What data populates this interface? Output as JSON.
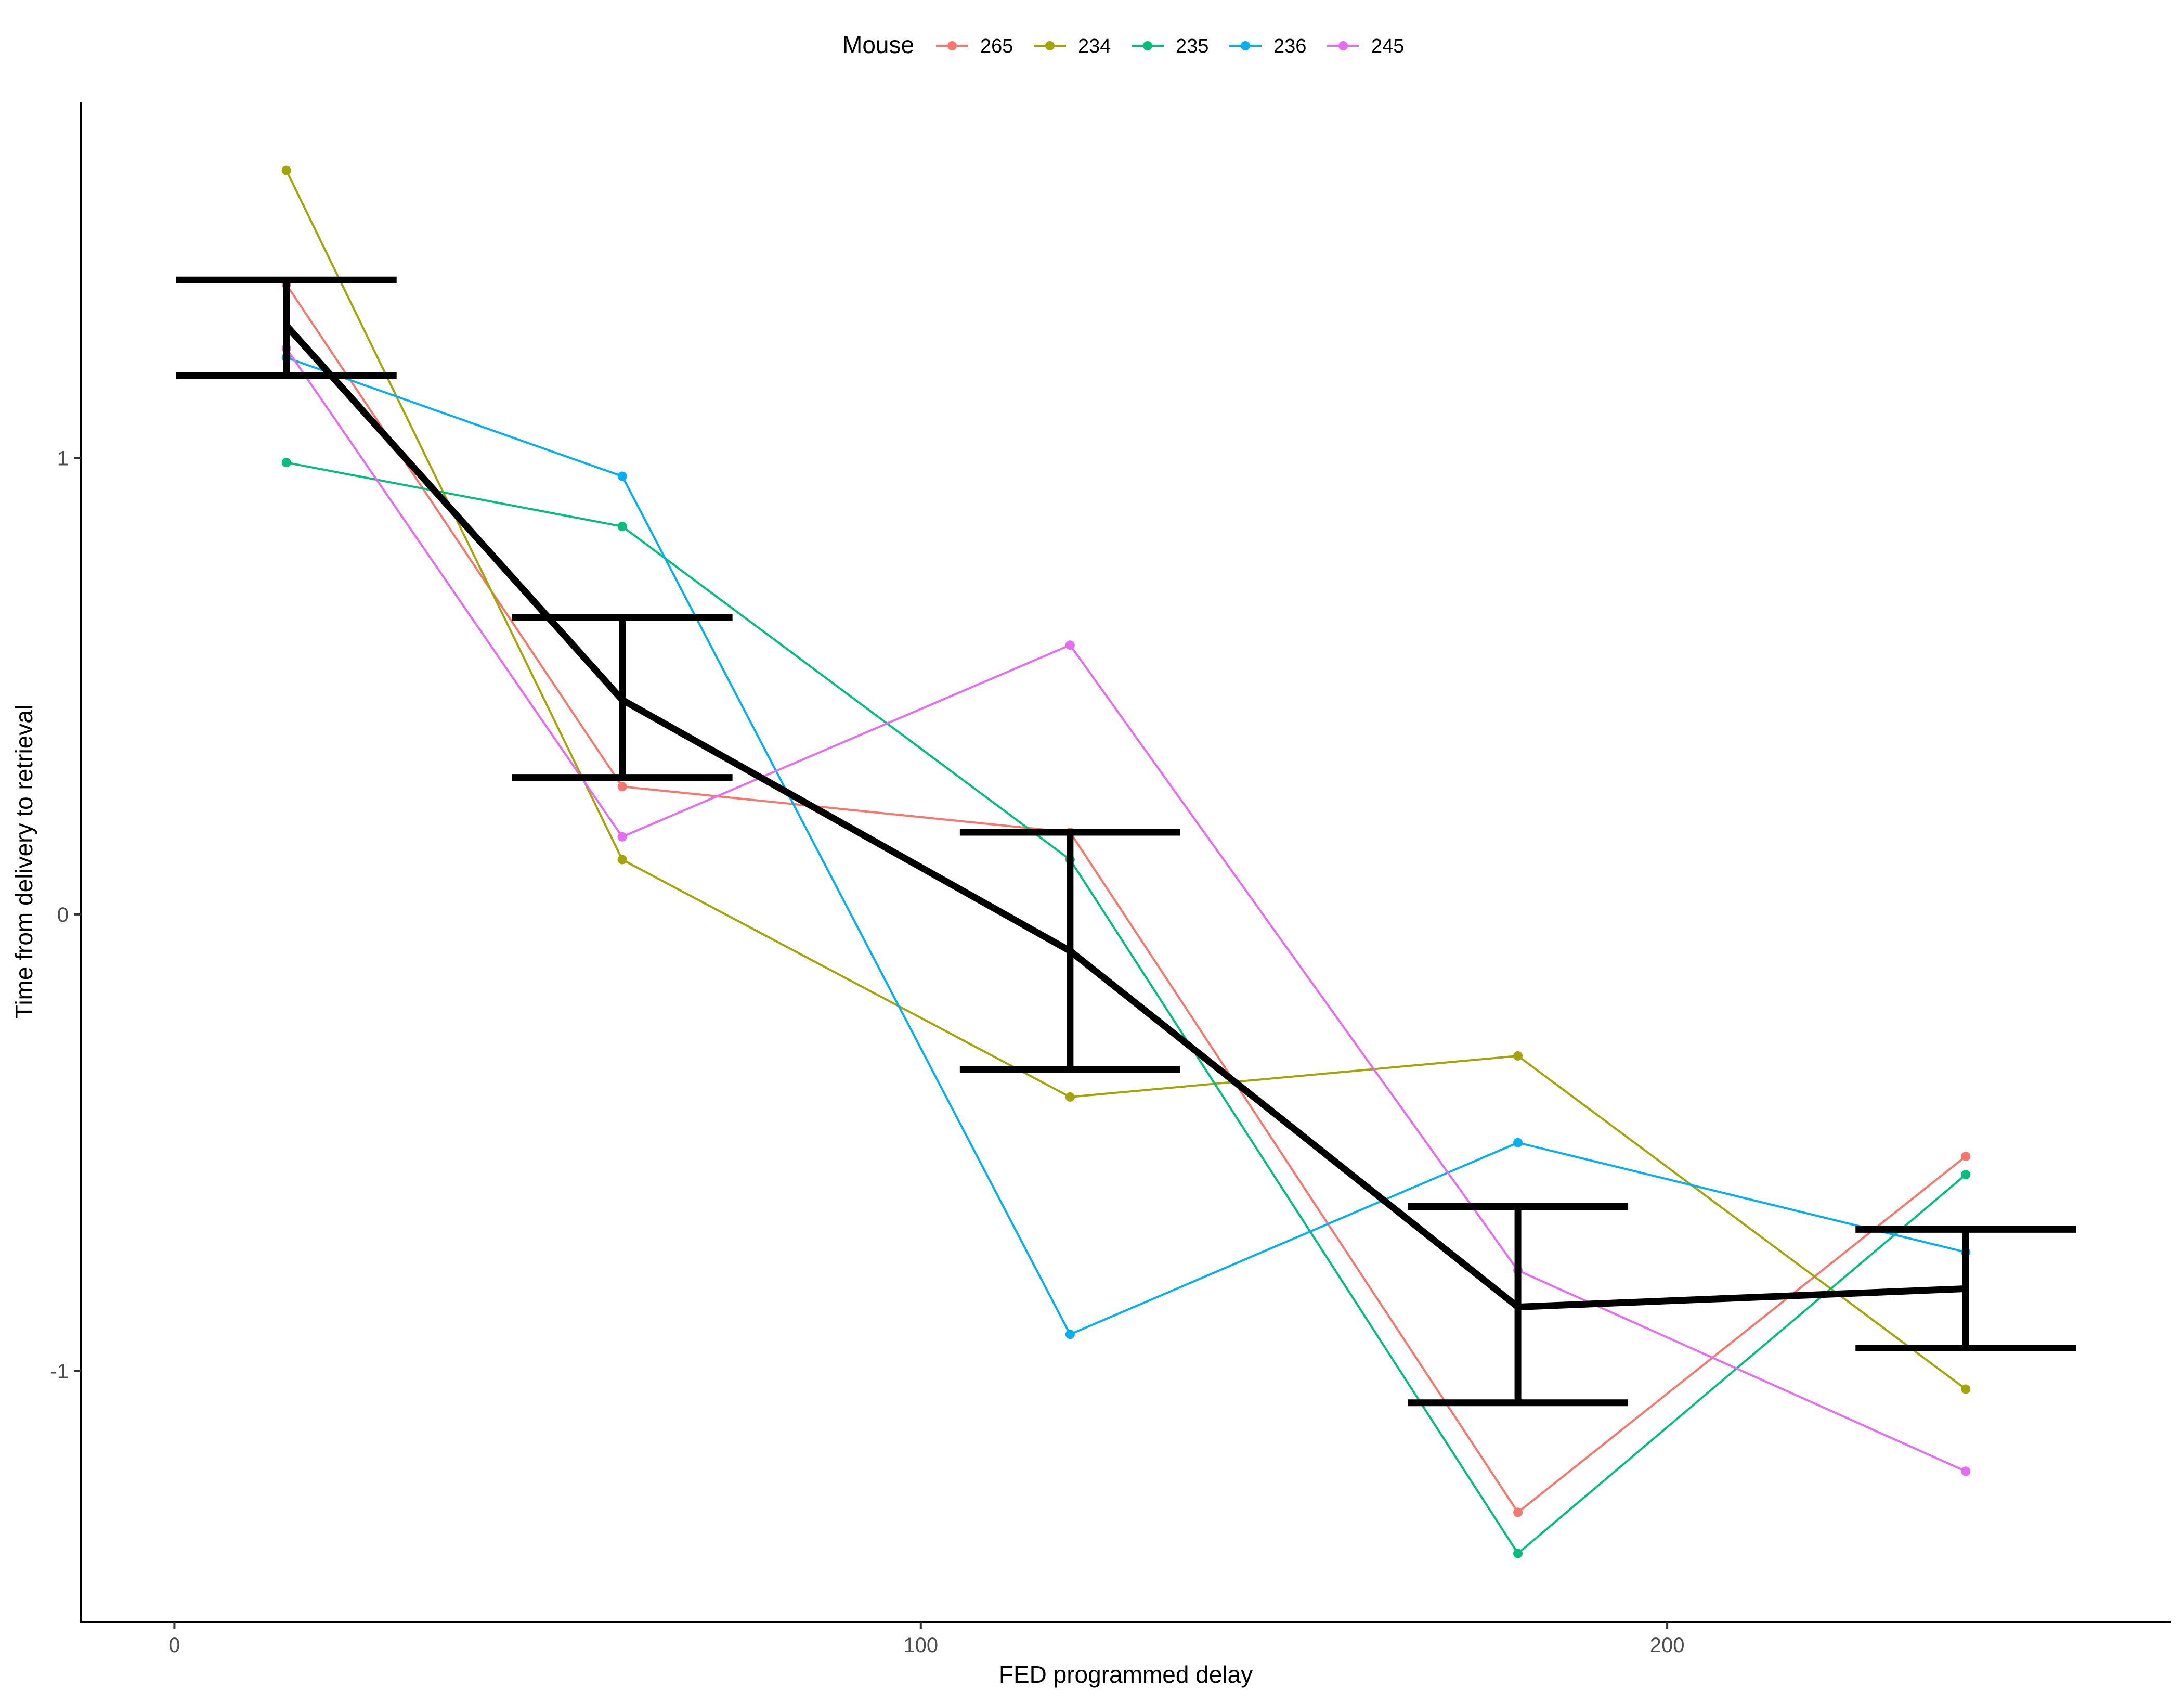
{
  "chart_data": {
    "type": "line",
    "xlabel": "FED programmed delay",
    "ylabel": "Time from delivery to retrieval",
    "xlim": [
      -12.5,
      267.5
    ],
    "ylim": [
      -1.55,
      1.78
    ],
    "x_ticks": [
      0,
      100,
      200
    ],
    "x_tick_labels": [
      "0",
      "100",
      "200"
    ],
    "y_ticks": [
      -1,
      0,
      1
    ],
    "y_tick_labels": [
      "-1",
      "0",
      "1"
    ],
    "grid": false,
    "legend": {
      "title": "Mouse",
      "position": "top"
    },
    "x": [
      15,
      60,
      120,
      180,
      240
    ],
    "series": [
      {
        "name": "265",
        "color": "#F8766D",
        "values": [
          1.38,
          0.28,
          0.18,
          -1.31,
          -0.53
        ]
      },
      {
        "name": "234",
        "color": "#A3A500",
        "values": [
          1.63,
          0.12,
          -0.4,
          -0.31,
          -1.04
        ]
      },
      {
        "name": "235",
        "color": "#00BF7D",
        "values": [
          0.99,
          0.85,
          0.12,
          -1.4,
          -0.57
        ]
      },
      {
        "name": "236",
        "color": "#00B0F6",
        "values": [
          1.22,
          0.96,
          -0.92,
          -0.5,
          -0.74
        ]
      },
      {
        "name": "245",
        "color": "#E76BF3",
        "values": [
          1.24,
          0.17,
          0.59,
          -0.78,
          -1.22
        ]
      }
    ],
    "mean": {
      "color": "#000000",
      "values": [
        1.29,
        0.47,
        -0.08,
        -0.86,
        -0.82
      ],
      "error_upper": [
        1.39,
        0.65,
        0.18,
        -0.64,
        -0.69
      ],
      "error_lower": [
        1.18,
        0.3,
        -0.34,
        -1.07,
        -0.95
      ]
    }
  }
}
